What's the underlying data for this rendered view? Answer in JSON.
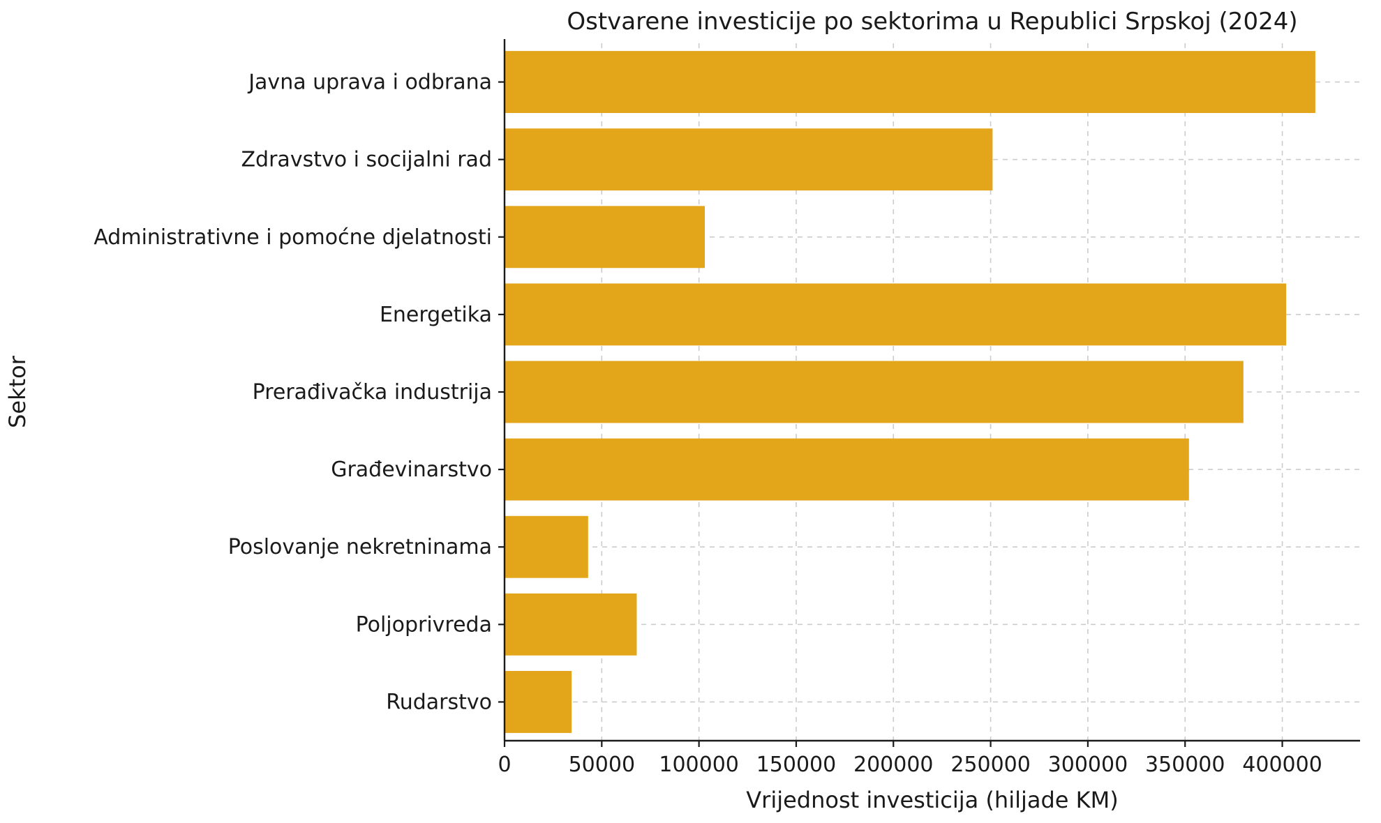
{
  "chart_data": {
    "type": "bar",
    "orientation": "horizontal",
    "title": "Ostvarene investicije po sektorima u Republici Srpskoj (2024)",
    "xlabel": "Vrijednost investicija (hiljade KM)",
    "ylabel": "Sektor",
    "categories": [
      "Javna uprava i odbrana",
      "Zdravstvo i socijalni rad",
      "Administrativne i pomoćne djelatnosti",
      "Energetika",
      "Prerađivačka industrija",
      "Građevinarstvo",
      "Poslovanje nekretninama",
      "Poljoprivreda",
      "Rudarstvo"
    ],
    "values": [
      417000,
      251000,
      103000,
      402000,
      380000,
      352000,
      43000,
      68000,
      34500
    ],
    "xlim": [
      0,
      440000
    ],
    "xticks": [
      0,
      50000,
      100000,
      150000,
      200000,
      250000,
      300000,
      350000,
      400000
    ],
    "xtick_labels": [
      "0",
      "50000",
      "100000",
      "150000",
      "200000",
      "250000",
      "300000",
      "350000",
      "400000"
    ],
    "bar_color": "#E3A51A",
    "grid_color": "#cccccc",
    "grid_style": "dashed",
    "axis_color": "#1a1a1a",
    "legend": "none"
  }
}
